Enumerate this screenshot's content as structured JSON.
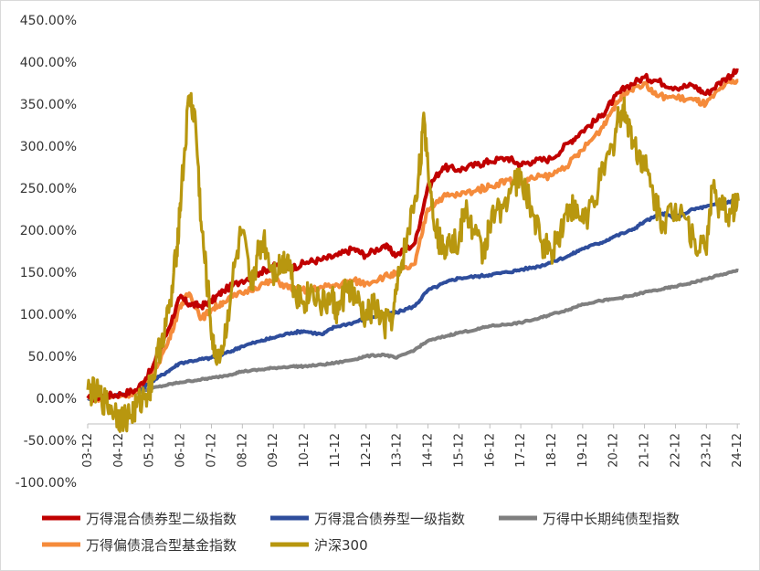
{
  "chart_data": {
    "type": "line",
    "title": "",
    "xlabel": "",
    "ylabel": "",
    "ylim": [
      -100,
      450
    ],
    "y_tick_labels": [
      "450.00%",
      "400.00%",
      "350.00%",
      "300.00%",
      "250.00%",
      "200.00%",
      "150.00%",
      "100.00%",
      "50.00%",
      "0.00%",
      "-50.00%",
      "-100.00%"
    ],
    "y_ticks": [
      450,
      400,
      350,
      300,
      250,
      200,
      150,
      100,
      50,
      0,
      -50,
      -100
    ],
    "x_range": [
      2003.917,
      2025.0
    ],
    "x_ticks": [
      2003.917,
      2004.917,
      2005.917,
      2006.917,
      2007.917,
      2008.917,
      2009.917,
      2010.917,
      2011.917,
      2012.917,
      2013.917,
      2014.917,
      2015.917,
      2016.917,
      2017.917,
      2018.917,
      2019.917,
      2020.917,
      2021.917,
      2022.917,
      2023.917,
      2024.917
    ],
    "x_tick_labels": [
      "03-12",
      "04-12",
      "05-12",
      "06-12",
      "07-12",
      "08-12",
      "09-12",
      "10-12",
      "11-12",
      "12-12",
      "13-12",
      "14-12",
      "15-12",
      "16-12",
      "17-12",
      "18-12",
      "19-12",
      "20-12",
      "21-12",
      "22-12",
      "23-12",
      "24-12"
    ],
    "grid": false,
    "legend_position": "bottom",
    "series": [
      {
        "name": "万得混合债券型二级指数",
        "color": "#c00000",
        "x": [
          2003.92,
          2004.5,
          2005.0,
          2005.5,
          2006.0,
          2006.5,
          2006.9,
          2007.2,
          2007.6,
          2007.9,
          2008.3,
          2008.9,
          2009.5,
          2010.0,
          2010.5,
          2011.0,
          2011.5,
          2012.0,
          2012.5,
          2012.9,
          2013.5,
          2013.9,
          2014.5,
          2014.9,
          2015.4,
          2015.9,
          2016.5,
          2016.9,
          2017.5,
          2017.9,
          2018.3,
          2018.9,
          2019.5,
          2019.9,
          2020.5,
          2020.9,
          2021.3,
          2021.9,
          2022.3,
          2022.9,
          2023.5,
          2023.9,
          2024.5,
          2024.95
        ],
        "values": [
          0,
          3,
          5,
          10,
          35,
          80,
          120,
          112,
          110,
          115,
          128,
          140,
          150,
          158,
          155,
          162,
          165,
          170,
          178,
          170,
          182,
          170,
          185,
          250,
          275,
          272,
          278,
          282,
          286,
          278,
          282,
          285,
          305,
          318,
          335,
          355,
          370,
          382,
          378,
          370,
          372,
          362,
          380,
          390
        ]
      },
      {
        "name": "万得混合债券型一级指数",
        "color": "#2e4d9c",
        "x": [
          2003.92,
          2004.5,
          2005.0,
          2005.5,
          2006.0,
          2006.5,
          2006.9,
          2007.5,
          2007.9,
          2008.5,
          2008.9,
          2009.5,
          2009.9,
          2010.5,
          2010.9,
          2011.5,
          2011.9,
          2012.5,
          2012.9,
          2013.5,
          2013.9,
          2014.5,
          2014.9,
          2015.5,
          2015.9,
          2016.5,
          2016.9,
          2017.5,
          2017.9,
          2018.5,
          2018.9,
          2019.5,
          2019.9,
          2020.5,
          2020.9,
          2021.5,
          2021.9,
          2022.5,
          2022.9,
          2023.5,
          2023.9,
          2024.5,
          2024.95
        ],
        "values": [
          0,
          2,
          4,
          8,
          20,
          32,
          42,
          46,
          48,
          55,
          62,
          68,
          72,
          78,
          80,
          76,
          85,
          90,
          95,
          100,
          102,
          110,
          128,
          138,
          143,
          145,
          147,
          150,
          153,
          157,
          162,
          170,
          178,
          185,
          192,
          200,
          210,
          220,
          215,
          225,
          228,
          232,
          238
        ]
      },
      {
        "name": "万得中长期纯债型指数",
        "color": "#7f7f7f",
        "x": [
          2003.92,
          2004.5,
          2005.0,
          2005.5,
          2006.0,
          2006.5,
          2006.9,
          2007.5,
          2007.9,
          2008.5,
          2008.9,
          2009.5,
          2009.9,
          2010.5,
          2010.9,
          2011.5,
          2011.9,
          2012.5,
          2012.9,
          2013.5,
          2013.9,
          2014.5,
          2014.9,
          2015.5,
          2015.9,
          2016.5,
          2016.9,
          2017.5,
          2017.9,
          2018.5,
          2018.9,
          2019.5,
          2019.9,
          2020.5,
          2020.9,
          2021.5,
          2021.9,
          2022.5,
          2022.9,
          2023.5,
          2023.9,
          2024.5,
          2024.95
        ],
        "values": [
          0,
          2,
          4,
          7,
          12,
          16,
          19,
          22,
          24,
          28,
          32,
          34,
          36,
          38,
          38,
          40,
          42,
          46,
          50,
          52,
          48,
          58,
          68,
          74,
          78,
          82,
          86,
          88,
          90,
          95,
          100,
          106,
          112,
          116,
          118,
          122,
          126,
          130,
          133,
          138,
          142,
          148,
          152
        ]
      },
      {
        "name": "万得偏债混合型基金指数",
        "color": "#f58b3b",
        "x": [
          2003.92,
          2004.5,
          2005.0,
          2005.5,
          2006.0,
          2006.5,
          2006.9,
          2007.2,
          2007.6,
          2007.9,
          2008.3,
          2008.9,
          2009.5,
          2010.0,
          2010.5,
          2011.0,
          2011.5,
          2012.0,
          2012.5,
          2012.9,
          2013.5,
          2013.9,
          2014.5,
          2014.9,
          2015.4,
          2015.9,
          2016.5,
          2016.9,
          2017.5,
          2017.9,
          2018.3,
          2018.9,
          2019.5,
          2019.9,
          2020.5,
          2020.9,
          2021.3,
          2021.9,
          2022.3,
          2022.9,
          2023.5,
          2023.9,
          2024.5,
          2024.95
        ],
        "values": [
          0,
          1,
          3,
          8,
          28,
          65,
          110,
          125,
          95,
          105,
          115,
          125,
          135,
          140,
          130,
          128,
          132,
          135,
          140,
          137,
          145,
          148,
          160,
          225,
          240,
          242,
          248,
          252,
          260,
          255,
          262,
          265,
          280,
          295,
          320,
          345,
          365,
          375,
          360,
          358,
          355,
          350,
          372,
          378
        ]
      },
      {
        "name": "沪深300",
        "color": "#b8970f",
        "x": [
          2003.92,
          2004.2,
          2004.5,
          2004.8,
          2005.0,
          2005.3,
          2005.5,
          2005.8,
          2006.0,
          2006.3,
          2006.6,
          2006.8,
          2006.95,
          2007.2,
          2007.4,
          2007.6,
          2007.8,
          2008.0,
          2008.3,
          2008.6,
          2008.9,
          2009.2,
          2009.4,
          2009.6,
          2009.9,
          2010.2,
          2010.4,
          2010.6,
          2010.9,
          2011.2,
          2011.5,
          2011.8,
          2012.0,
          2012.3,
          2012.6,
          2012.9,
          2013.2,
          2013.5,
          2013.8,
          2014.0,
          2014.3,
          2014.6,
          2014.8,
          2015.0,
          2015.2,
          2015.4,
          2015.6,
          2015.9,
          2016.1,
          2016.4,
          2016.7,
          2016.9,
          2017.3,
          2017.7,
          2017.95,
          2018.3,
          2018.6,
          2018.9,
          2019.2,
          2019.5,
          2019.8,
          2020.1,
          2020.5,
          2020.9,
          2021.1,
          2021.3,
          2021.6,
          2021.9,
          2022.2,
          2022.5,
          2022.8,
          2023.1,
          2023.5,
          2023.9,
          2024.1,
          2024.4,
          2024.7,
          2024.95
        ],
        "values": [
          10,
          5,
          -5,
          -15,
          -25,
          -20,
          -10,
          5,
          20,
          70,
          110,
          180,
          250,
          360,
          330,
          200,
          130,
          50,
          60,
          140,
          200,
          130,
          170,
          190,
          150,
          160,
          170,
          130,
          115,
          130,
          110,
          120,
          100,
          135,
          115,
          95,
          110,
          85,
          100,
          150,
          200,
          260,
          330,
          245,
          200,
          175,
          195,
          180,
          225,
          200,
          170,
          205,
          230,
          255,
          260,
          220,
          185,
          175,
          200,
          230,
          215,
          220,
          260,
          300,
          340,
          340,
          300,
          280,
          240,
          210,
          220,
          230,
          190,
          175,
          250,
          225,
          220,
          235
        ]
      }
    ]
  }
}
